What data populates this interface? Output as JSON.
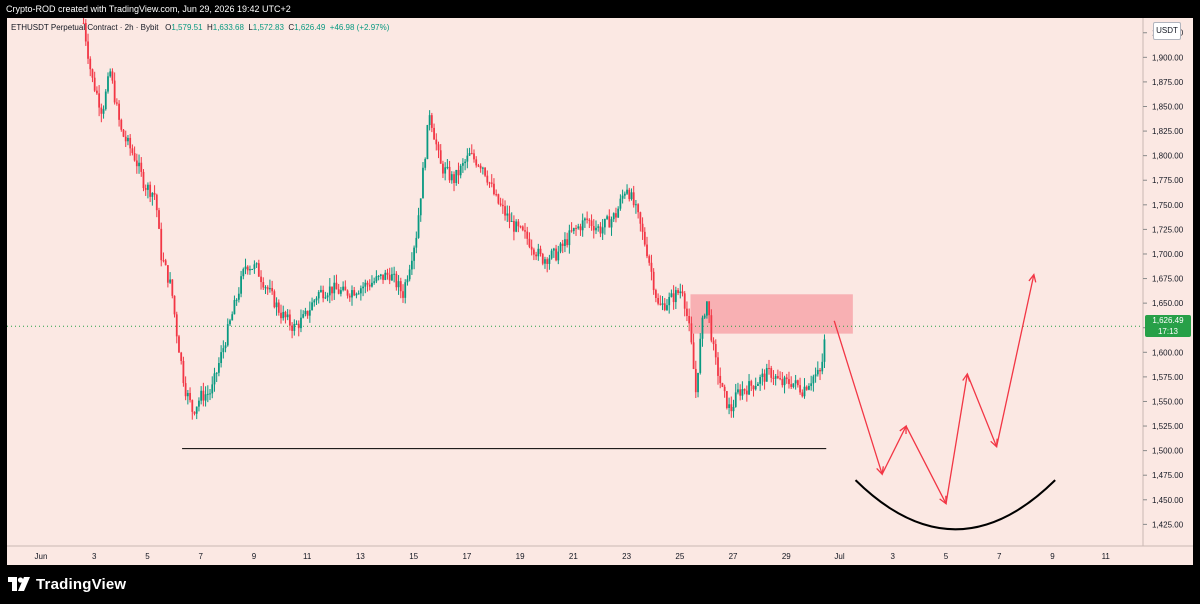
{
  "attribution": "Crypto-ROD created with TradingView.com, Jun 29, 2026 19:42 UTC+2",
  "symbol": {
    "title": "ETHUSDT Perpetual Contract · 2h · Bybit",
    "open_label": "O",
    "open": "1,579.51",
    "high_label": "H",
    "high": "1,633.68",
    "low_label": "L",
    "low": "1,572.83",
    "close_label": "C",
    "close": "1,626.49",
    "change": "+46.98 (+2.97%)"
  },
  "currency": "USDT",
  "last_price": {
    "value": "1,626.49",
    "countdown": "17:13"
  },
  "brand": {
    "name": "TradingView",
    "logo_icon": "tradingview-logo-icon"
  },
  "colors": {
    "background": "#fbe8e3",
    "up_candle": "#089981",
    "down_candle": "#f23645",
    "zone_fill": "#f7a6aa",
    "projection": "#f23645",
    "curve": "#000000",
    "support_line": "#000000",
    "last_price_label": "#27a048"
  },
  "chart_data": {
    "type": "candlestick",
    "symbol": "ETHUSDT",
    "timeframe": "2h",
    "exchange": "Bybit",
    "y_axis": {
      "range": [
        1403,
        1940
      ],
      "ticks": [
        1425,
        1450,
        1475,
        1500,
        1525,
        1550,
        1575,
        1600,
        1625,
        1650,
        1675,
        1700,
        1725,
        1750,
        1775,
        1800,
        1825,
        1850,
        1875,
        1900,
        1925
      ],
      "tick_labels": [
        "1,425.00",
        "1,450.00",
        "1,475.00",
        "1,500.00",
        "1,525.00",
        "1,550.00",
        "1,575.00",
        "1,600.00",
        "1,625.00",
        "1,650.00",
        "1,675.00",
        "1,700.00",
        "1,725.00",
        "1,750.00",
        "1,775.00",
        "1,800.00",
        "1,825.00",
        "1,850.00",
        "1,875.00",
        "1,900.00",
        "1,925.00"
      ]
    },
    "x_axis": {
      "range_days": [
        0,
        41.4
      ],
      "ticks": [
        {
          "day": 0,
          "label": "Jun"
        },
        {
          "day": 2,
          "label": "3"
        },
        {
          "day": 4,
          "label": "5"
        },
        {
          "day": 6,
          "label": "7"
        },
        {
          "day": 8,
          "label": "9"
        },
        {
          "day": 10,
          "label": "11"
        },
        {
          "day": 12,
          "label": "13"
        },
        {
          "day": 14,
          "label": "15"
        },
        {
          "day": 16,
          "label": "17"
        },
        {
          "day": 18,
          "label": "19"
        },
        {
          "day": 20,
          "label": "21"
        },
        {
          "day": 22,
          "label": "23"
        },
        {
          "day": 24,
          "label": "25"
        },
        {
          "day": 26,
          "label": "27"
        },
        {
          "day": 28,
          "label": "29"
        },
        {
          "day": 30,
          "label": "Jul"
        },
        {
          "day": 32,
          "label": "3"
        },
        {
          "day": 34,
          "label": "5"
        },
        {
          "day": 36,
          "label": "7"
        },
        {
          "day": 38,
          "label": "9"
        },
        {
          "day": 40,
          "label": "11"
        }
      ]
    },
    "price_path": [
      [
        1.6,
        1935
      ],
      [
        1.9,
        1880
      ],
      [
        2.3,
        1845
      ],
      [
        2.6,
        1885
      ],
      [
        3.0,
        1825
      ],
      [
        3.5,
        1800
      ],
      [
        3.9,
        1770
      ],
      [
        4.3,
        1760
      ],
      [
        4.5,
        1700
      ],
      [
        4.9,
        1665
      ],
      [
        5.1,
        1620
      ],
      [
        5.4,
        1565
      ],
      [
        5.7,
        1540
      ],
      [
        6.0,
        1555
      ],
      [
        6.4,
        1560
      ],
      [
        6.9,
        1610
      ],
      [
        7.3,
        1650
      ],
      [
        7.7,
        1690
      ],
      [
        8.1,
        1685
      ],
      [
        8.6,
        1660
      ],
      [
        9.0,
        1640
      ],
      [
        9.5,
        1625
      ],
      [
        9.9,
        1635
      ],
      [
        10.4,
        1660
      ],
      [
        10.9,
        1665
      ],
      [
        11.4,
        1660
      ],
      [
        11.9,
        1665
      ],
      [
        12.5,
        1672
      ],
      [
        13.1,
        1680
      ],
      [
        13.6,
        1660
      ],
      [
        14.1,
        1720
      ],
      [
        14.6,
        1845
      ],
      [
        15.0,
        1790
      ],
      [
        15.5,
        1775
      ],
      [
        16.1,
        1800
      ],
      [
        16.6,
        1790
      ],
      [
        17.1,
        1755
      ],
      [
        17.7,
        1730
      ],
      [
        18.3,
        1715
      ],
      [
        18.8,
        1695
      ],
      [
        19.4,
        1700
      ],
      [
        19.9,
        1720
      ],
      [
        20.5,
        1735
      ],
      [
        21.0,
        1725
      ],
      [
        21.6,
        1740
      ],
      [
        22.0,
        1770
      ],
      [
        22.4,
        1740
      ],
      [
        22.8,
        1700
      ],
      [
        23.2,
        1645
      ],
      [
        23.7,
        1655
      ],
      [
        24.1,
        1665
      ],
      [
        24.4,
        1615
      ],
      [
        24.6,
        1560
      ],
      [
        24.8,
        1620
      ],
      [
        25.0,
        1655
      ],
      [
        25.3,
        1595
      ],
      [
        25.6,
        1560
      ],
      [
        25.9,
        1540
      ],
      [
        26.2,
        1560
      ],
      [
        26.6,
        1565
      ],
      [
        27.0,
        1572
      ],
      [
        27.4,
        1580
      ],
      [
        27.8,
        1568
      ],
      [
        28.2,
        1570
      ],
      [
        28.6,
        1562
      ],
      [
        29.0,
        1575
      ],
      [
        29.3,
        1579
      ],
      [
        29.5,
        1626
      ]
    ],
    "last_price": 1626.49,
    "support_line": {
      "price": 1502,
      "from_day": 5.3,
      "to_day": 29.5
    },
    "resistance_zone": {
      "from_day": 24.4,
      "to_day": 30.5,
      "bottom": 1619,
      "top": 1659
    },
    "projection_path": [
      [
        29.8,
        1632
      ],
      [
        31.6,
        1476
      ],
      [
        32.5,
        1525
      ],
      [
        34.0,
        1446
      ],
      [
        34.8,
        1578
      ],
      [
        35.9,
        1504
      ],
      [
        37.3,
        1679
      ]
    ],
    "projection_curve": {
      "from_day": 30.6,
      "to_day": 38.1,
      "start_price": 1470,
      "bottom_price": 1420,
      "end_price": 1470
    }
  }
}
